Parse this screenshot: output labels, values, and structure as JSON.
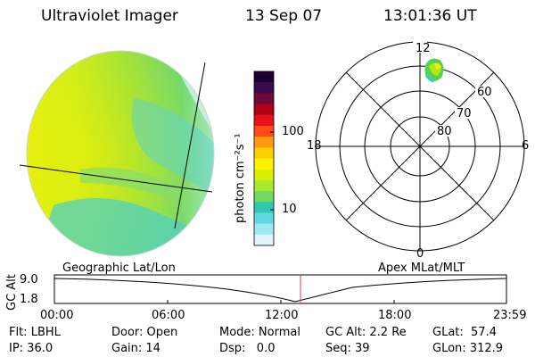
{
  "header": {
    "title": "Ultraviolet Imager",
    "date": "13 Sep 07",
    "time": "13:01:36 UT"
  },
  "colorbar": {
    "label": "photon cm⁻²s⁻¹",
    "ticks": [
      "100",
      "10"
    ],
    "colors": [
      "#1a0033",
      "#3c0a4a",
      "#6e0a3a",
      "#b00018",
      "#e8101a",
      "#ff4a1a",
      "#ff9a10",
      "#ffd000",
      "#fff200",
      "#d8f000",
      "#a8e830",
      "#70d860",
      "#30c8b0",
      "#60d8e0",
      "#a0e8f0",
      "#e0f4f8"
    ]
  },
  "polar_plot": {
    "mlt_labels": {
      "top": "12",
      "left": "18",
      "right": "6",
      "bottom": "0"
    },
    "mlat_labels": [
      "60",
      "70",
      "80"
    ]
  },
  "timeline": {
    "left_label": "Geographic Lat/Lon",
    "right_label": "Apex MLat/MLT",
    "axis_title": "GC Alt",
    "y_ticks": [
      "9.0",
      "1.8"
    ],
    "x_ticks": [
      "00:00",
      "06:00",
      "12:00",
      "18:00",
      "23:59"
    ]
  },
  "status": {
    "flt": "Flt: LBHL",
    "ip": "IP: 36.0",
    "door": "Door: Open",
    "gain": "Gain: 14",
    "mode": "Mode: Normal",
    "dsp": "Dsp:   0.0",
    "gc_alt": "GC Alt: 2.2 Re",
    "seq": "Seq: 39",
    "glat": "GLat:  57.4",
    "glon": "GLon: 312.9"
  },
  "colors": {
    "marker": "#d04040",
    "globe_base": "#a8e030"
  }
}
